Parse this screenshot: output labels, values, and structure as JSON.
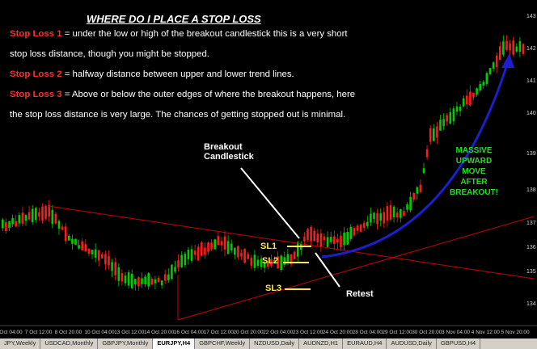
{
  "heading": "WHERE DO I PLACE A STOP LOSS",
  "lines": {
    "l1_label": "Stop Loss 1",
    "l1_text": " = under the low or high of the breakout candlestick  this is a very short",
    "l2_text": "stop loss distance, though you might be stopped.",
    "l3_label": "Stop Loss 2",
    "l3_text": " = halfway distance between upper and lower trend lines.",
    "l4_label": "Stop Loss 3",
    "l4_text": " = Above or below the outer edges of where the breakout happens, here",
    "l5_text": "the stop loss distance is very large. The chances of getting stopped out is minimal."
  },
  "callouts": {
    "breakout_line1": "Breakout",
    "breakout_line2": "Candlestick",
    "retest": "Retest",
    "sl1": "SL1",
    "sl2": "SL2",
    "sl3": "SL3",
    "massive": [
      "MASSIVE",
      "UPWARD MOVE",
      "AFTER",
      "BREAKOUT!"
    ]
  },
  "axis": {
    "x_labels": [
      "2 Oct 04:00",
      "7 Oct 12:00",
      "8 Oct 20:00",
      "10 Oct 04:00",
      "13 Oct 12:00",
      "14 Oct 20:00",
      "16 Oct 04:00",
      "17 Oct 12:00",
      "20 Oct 20:00",
      "22 Oct 04:00",
      "23 Oct 12:00",
      "24 Oct 20:00",
      "28 Oct 04:00",
      "29 Oct 12:00",
      "30 Oct 20:00",
      "3 Nov 04:00",
      "4 Nov 12:00",
      "5 Nov 20:00"
    ],
    "y_labels": [
      "143",
      "142",
      "141",
      "140",
      "139",
      "138",
      "137",
      "136",
      "135",
      "134"
    ]
  },
  "colors": {
    "bull": "#00cc00",
    "bear": "#ff1a1a",
    "trend": "#cc0000",
    "sl": "#ffe94a",
    "arrow": "#1e1ecc"
  },
  "tabs": [
    "JPY,Weekly",
    "USDCAD,Monthly",
    "GBPJPY,Monthly",
    "EURJPY,H4",
    "GBPCHF,Weekly",
    "NZDUSD,Daily",
    "AUDNZD,H1",
    "EURAUD,H4",
    "AUDUSD,Daily",
    "GBPUSD,H4"
  ],
  "active_tab": "EURJPY,H4"
}
